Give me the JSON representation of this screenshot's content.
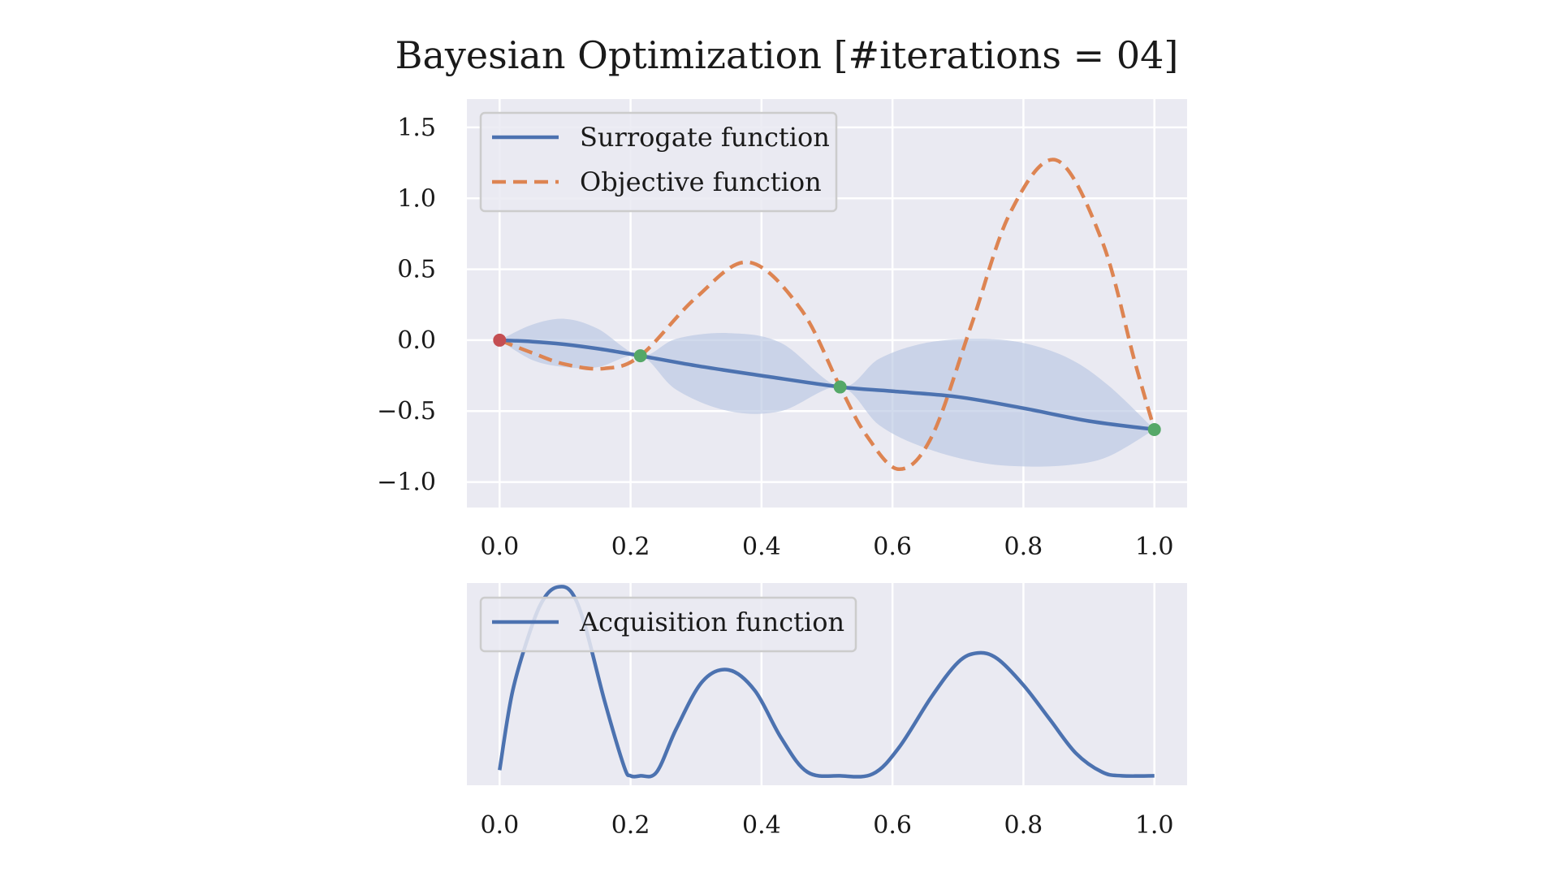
{
  "title": "Bayesian Optimization [#iterations = 04]",
  "colors": {
    "background": "#eaeaf2",
    "grid": "#ffffff",
    "surrogate": "#4c72b0",
    "objective": "#dd8452",
    "band": "#b9c6e2",
    "current_point": "#c44e52",
    "sample_point": "#55a868"
  },
  "chart_data": [
    {
      "type": "line",
      "panel": "top",
      "title": "Bayesian Optimization [#iterations = 04]",
      "xlabel": "",
      "ylabel": "",
      "xlim": [
        -0.05,
        1.05
      ],
      "ylim": [
        -1.18,
        1.7
      ],
      "xticks": [
        0.0,
        0.2,
        0.4,
        0.6,
        0.8,
        1.0
      ],
      "xtick_labels": [
        "0.0",
        "0.2",
        "0.4",
        "0.6",
        "0.8",
        "1.0"
      ],
      "yticks": [
        1.5,
        1.0,
        0.5,
        0.0,
        -0.5,
        -1.0
      ],
      "ytick_labels": [
        "1.5",
        "1.0",
        "0.5",
        "0.0",
        "−0.5",
        "−1.0"
      ],
      "grid": true,
      "legend": {
        "placement": "upper-left",
        "entries": [
          {
            "label": "Surrogate function",
            "style": "solid"
          },
          {
            "label": "Objective function",
            "style": "dashed"
          }
        ]
      },
      "series": [
        {
          "name": "Surrogate function",
          "x": [
            0.0,
            0.05,
            0.1,
            0.15,
            0.215,
            0.3,
            0.4,
            0.52,
            0.6,
            0.7,
            0.8,
            0.9,
            1.0
          ],
          "y": [
            0.0,
            -0.01,
            -0.03,
            -0.06,
            -0.11,
            -0.18,
            -0.25,
            -0.33,
            -0.36,
            -0.4,
            -0.48,
            -0.57,
            -0.63
          ]
        },
        {
          "name": "Objective function",
          "x": [
            0.0,
            0.05,
            0.1,
            0.16,
            0.215,
            0.3,
            0.38,
            0.46,
            0.52,
            0.56,
            0.61,
            0.66,
            0.72,
            0.78,
            0.85,
            0.92,
            0.97,
            1.0
          ],
          "y": [
            0.0,
            -0.09,
            -0.17,
            -0.2,
            -0.11,
            0.3,
            0.55,
            0.22,
            -0.33,
            -0.67,
            -0.91,
            -0.68,
            0.1,
            0.9,
            1.27,
            0.7,
            -0.15,
            -0.63
          ]
        },
        {
          "name": "Uncertainty upper",
          "x": [
            0.0,
            0.05,
            0.1,
            0.15,
            0.215,
            0.27,
            0.35,
            0.43,
            0.52,
            0.58,
            0.65,
            0.73,
            0.8,
            0.87,
            0.93,
            1.0
          ],
          "y": [
            0.0,
            0.11,
            0.15,
            0.08,
            -0.11,
            0.01,
            0.05,
            -0.02,
            -0.33,
            -0.13,
            -0.02,
            0.01,
            -0.02,
            -0.13,
            -0.32,
            -0.63
          ]
        },
        {
          "name": "Uncertainty lower",
          "x": [
            0.0,
            0.05,
            0.1,
            0.15,
            0.215,
            0.27,
            0.35,
            0.43,
            0.52,
            0.58,
            0.65,
            0.73,
            0.8,
            0.87,
            0.93,
            1.0
          ],
          "y": [
            0.0,
            -0.14,
            -0.19,
            -0.19,
            -0.11,
            -0.35,
            -0.5,
            -0.5,
            -0.33,
            -0.6,
            -0.76,
            -0.86,
            -0.89,
            -0.88,
            -0.82,
            -0.63
          ]
        }
      ],
      "points": [
        {
          "x": 0.0,
          "y": 0.0,
          "role": "current"
        },
        {
          "x": 0.215,
          "y": -0.11,
          "role": "sample"
        },
        {
          "x": 0.52,
          "y": -0.33,
          "role": "sample"
        },
        {
          "x": 1.0,
          "y": -0.63,
          "role": "sample"
        }
      ]
    },
    {
      "type": "line",
      "panel": "bottom",
      "xlim": [
        -0.05,
        1.05
      ],
      "ylim": [
        -0.05,
        1.02
      ],
      "xticks": [
        0.0,
        0.2,
        0.4,
        0.6,
        0.8,
        1.0
      ],
      "xtick_labels": [
        "0.0",
        "0.2",
        "0.4",
        "0.6",
        "0.8",
        "1.0"
      ],
      "yticks": [],
      "grid": true,
      "legend": {
        "placement": "upper-left",
        "entries": [
          {
            "label": "Acquisition function",
            "style": "solid"
          }
        ]
      },
      "series": [
        {
          "name": "Acquisition function",
          "x": [
            0.0,
            0.02,
            0.05,
            0.07,
            0.09,
            0.11,
            0.13,
            0.16,
            0.19,
            0.2,
            0.215,
            0.24,
            0.27,
            0.31,
            0.35,
            0.39,
            0.43,
            0.47,
            0.52,
            0.57,
            0.61,
            0.66,
            0.7,
            0.73,
            0.76,
            0.8,
            0.84,
            0.88,
            0.92,
            0.95,
            1.0
          ],
          "y": [
            0.03,
            0.45,
            0.8,
            0.95,
            1.0,
            0.97,
            0.8,
            0.4,
            0.05,
            0.0,
            0.0,
            0.02,
            0.25,
            0.5,
            0.56,
            0.45,
            0.2,
            0.02,
            0.0,
            0.01,
            0.15,
            0.42,
            0.6,
            0.65,
            0.62,
            0.48,
            0.3,
            0.12,
            0.02,
            0.0,
            0.0
          ]
        }
      ]
    }
  ]
}
